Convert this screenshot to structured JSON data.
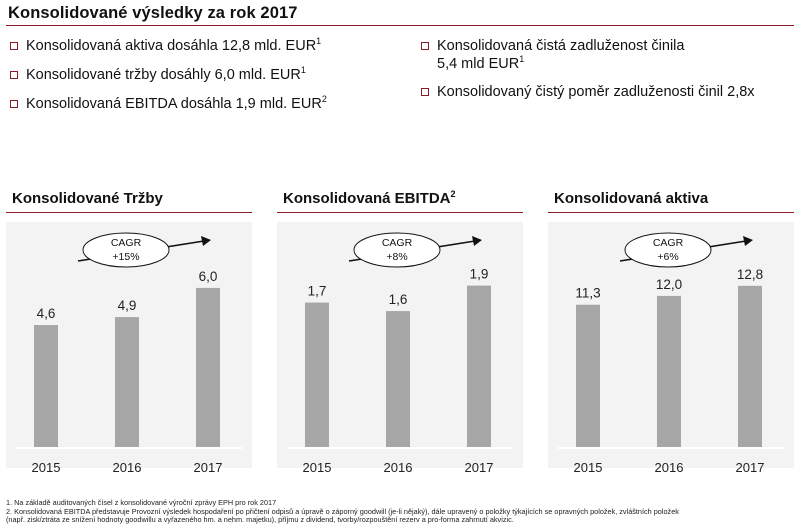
{
  "header": {
    "title": "Konsolidované výsledky za rok 2017"
  },
  "bullets": {
    "left": [
      {
        "text": "Konsolidovaná aktiva dosáhla 12,8 mld. EUR",
        "sup": "1"
      },
      {
        "text": "Konsolidované tržby dosáhly 6,0 mld. EUR",
        "sup": "1"
      },
      {
        "text": "Konsolidovaná EBITDA dosáhla 1,9 mld. EUR",
        "sup": "2"
      }
    ],
    "right": [
      {
        "line1": "Konsolidovaná čistá zadluženost činila",
        "line2": "5,4 mld EUR",
        "sup": "1"
      },
      {
        "text": "Konsolidovaný čistý poměr zadluženosti činil 2,8x"
      }
    ]
  },
  "chart_data": [
    {
      "type": "bar",
      "title": "Konsolidované Tržby",
      "title_sup": "",
      "categories": [
        "2015",
        "2016",
        "2017"
      ],
      "values": [
        4.6,
        4.9,
        6.0
      ],
      "value_labels": [
        "4,6",
        "4,9",
        "6,0"
      ],
      "ylim": [
        0,
        6.6
      ],
      "annotation": {
        "line1": "CAGR",
        "line2": "+15%"
      },
      "bar_color": "#a6a6a6"
    },
    {
      "type": "bar",
      "title": "Konsolidovaná EBITDA",
      "title_sup": "2",
      "categories": [
        "2015",
        "2016",
        "2017"
      ],
      "values": [
        1.7,
        1.6,
        1.9
      ],
      "value_labels": [
        "1,7",
        "1,6",
        "1,9"
      ],
      "ylim": [
        0,
        2.06
      ],
      "annotation": {
        "line1": "CAGR",
        "line2": "+8%"
      },
      "bar_color": "#a6a6a6"
    },
    {
      "type": "bar",
      "title": "Konsolidovaná aktiva",
      "title_sup": "",
      "categories": [
        "2015",
        "2016",
        "2017"
      ],
      "values": [
        11.3,
        12.0,
        12.8
      ],
      "value_labels": [
        "11,3",
        "12,0",
        "12,8"
      ],
      "ylim": [
        0,
        13.9
      ],
      "annotation": {
        "line1": "CAGR",
        "line2": "+6%"
      },
      "bar_color": "#a6a6a6"
    }
  ],
  "footnotes": [
    "1. Na základě auditovaných čísel z konsolidované výroční zprávy EPH pro rok 2017",
    "2. Konsolidovaná EBITDA představuje Provozní výsledek hospodaření po přičtení odpisů a úpravě o záporný goodwill (je-li nějaký), dále upravený o položky týkajících se opravných položek, zvláštních položek",
    "(např. zisk/ztráta ze snížení hodnoty goodwillu a vyřazeného hm. a nehm. majetku), příjmu z dividend, tvorby/rozpouštění rezerv a pro-forma zahrnutí akvizic."
  ],
  "colors": {
    "accent": "#8b1a2b",
    "bar": "#a6a6a6",
    "panel": "#f3f3f3"
  }
}
